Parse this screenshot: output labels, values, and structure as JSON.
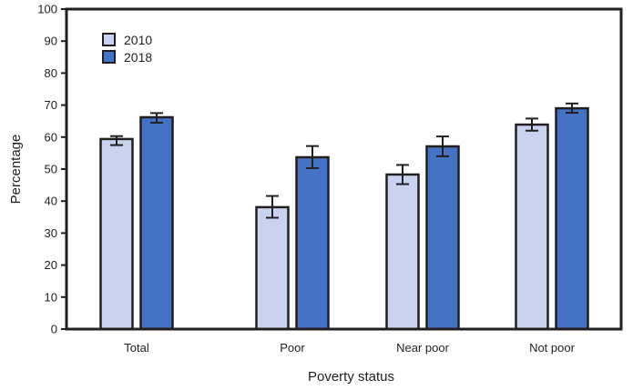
{
  "chart_data": {
    "type": "bar",
    "title": "",
    "xlabel": "Poverty status",
    "ylabel": "Percentage",
    "ylim": [
      0,
      100
    ],
    "yticks": [
      0,
      10,
      20,
      30,
      40,
      50,
      60,
      70,
      80,
      90,
      100
    ],
    "grid": false,
    "legend_position": "top-left",
    "categories": [
      "Total",
      "Poor",
      "Near poor",
      "Not poor"
    ],
    "series": [
      {
        "name": "2010",
        "color": "#c9d3ef",
        "values": [
          59.4,
          38.1,
          48.3,
          63.9
        ],
        "error_low": [
          57.5,
          34.8,
          45.3,
          62.0
        ],
        "error_high": [
          60.3,
          41.6,
          51.3,
          65.8
        ]
      },
      {
        "name": "2018",
        "color": "#4472c4",
        "values": [
          66.2,
          53.7,
          57.1,
          69.0
        ],
        "error_low": [
          64.5,
          50.3,
          54.0,
          67.6
        ],
        "error_high": [
          67.5,
          57.2,
          60.2,
          70.5
        ]
      }
    ]
  }
}
